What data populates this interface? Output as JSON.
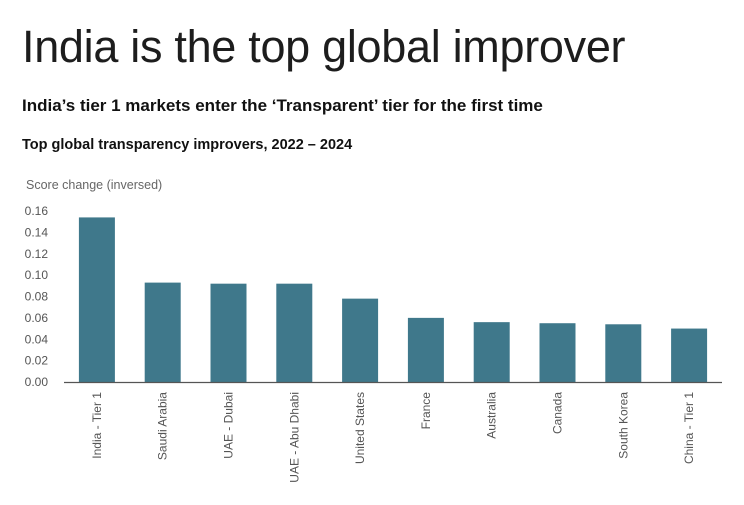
{
  "headline": "India is the top global improver",
  "subheadline": "India’s tier 1 markets enter the ‘Transparent’ tier for the first time",
  "chart_data": {
    "type": "bar",
    "title": "Top global transparency improvers, 2022 – 2024",
    "ylabel": "Score change (inversed)",
    "xlabel": "",
    "categories": [
      "India - Tier 1",
      "Saudi Arabia",
      "UAE - Dubai",
      "UAE - Abu Dhabi",
      "United States",
      "France",
      "Australia",
      "Canada",
      "South Korea",
      "China - Tier 1"
    ],
    "values": [
      0.154,
      0.093,
      0.092,
      0.092,
      0.078,
      0.06,
      0.056,
      0.055,
      0.054,
      0.05
    ],
    "yticks": [
      "0.16",
      "0.14",
      "0.12",
      "0.10",
      "0.08",
      "0.06",
      "0.04",
      "0.02",
      "0.00"
    ],
    "ylim": [
      0,
      0.16
    ],
    "grid": false,
    "colors": {
      "bar": "#3f788b",
      "axis": "#555555",
      "tick_text": "#555555"
    }
  }
}
